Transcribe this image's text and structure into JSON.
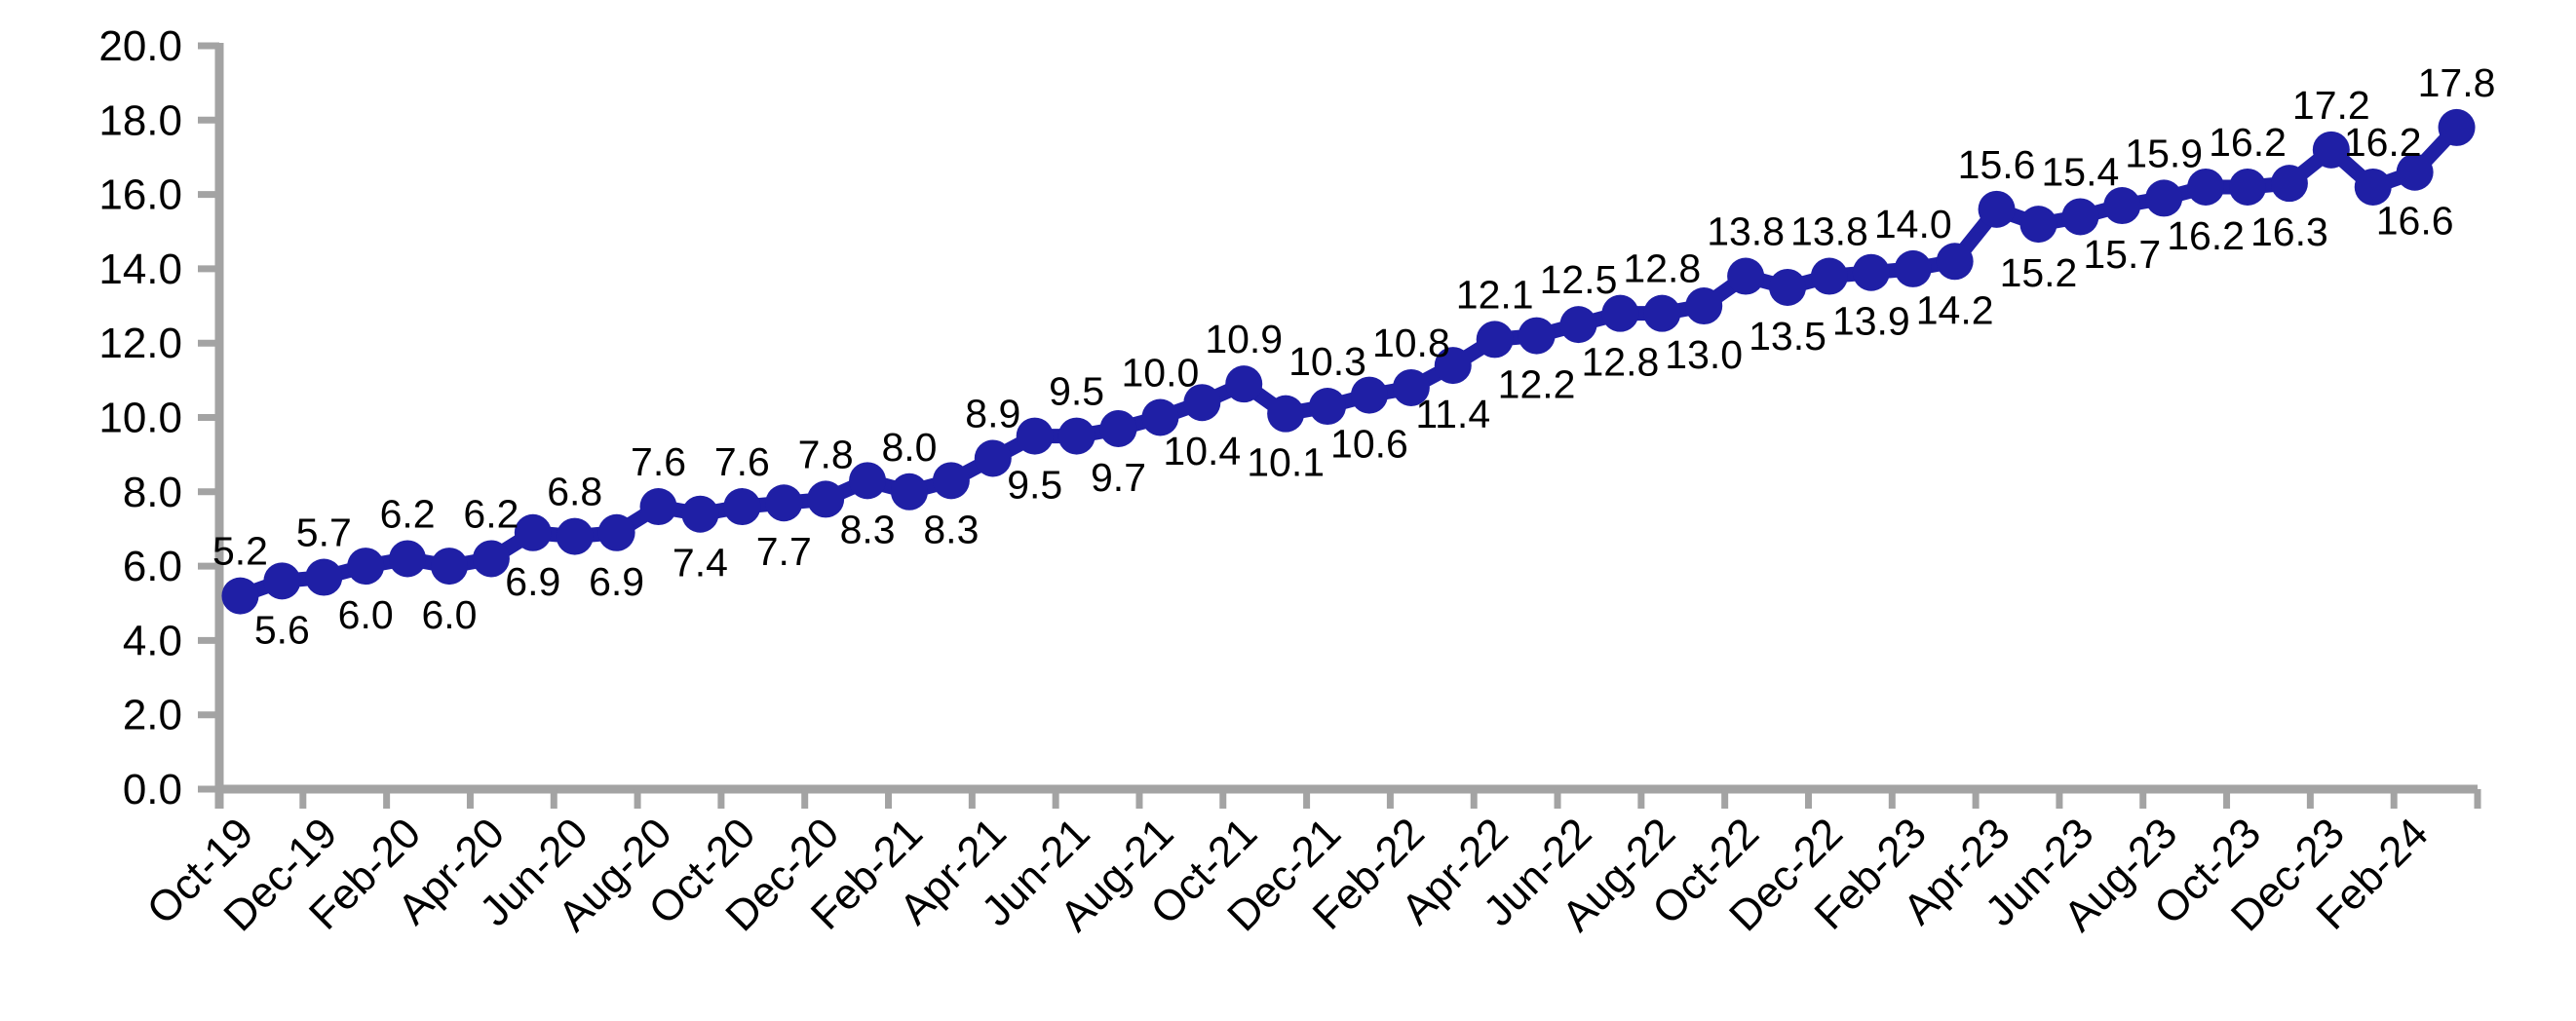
{
  "chart_data": {
    "type": "line",
    "title": "",
    "xlabel": "",
    "ylabel": "",
    "ylim": [
      0,
      20
    ],
    "y_tick_step": 2.0,
    "grid": "off",
    "legend": "none",
    "marker": "circle",
    "series_color": "#1f1fa5",
    "axis_color": "#a3a3a3",
    "label_color": "#000000",
    "x": [
      "Oct-19",
      "Nov-19",
      "Dec-19",
      "Jan-20",
      "Feb-20",
      "Mar-20",
      "Apr-20",
      "May-20",
      "Jun-20",
      "Jul-20",
      "Aug-20",
      "Sep-20",
      "Oct-20",
      "Nov-20",
      "Dec-20",
      "Jan-21",
      "Feb-21",
      "Mar-21",
      "Apr-21",
      "May-21",
      "Jun-21",
      "Jul-21",
      "Aug-21",
      "Sep-21",
      "Oct-21",
      "Nov-21",
      "Dec-21",
      "Jan-22",
      "Feb-22",
      "Mar-22",
      "Apr-22",
      "May-22",
      "Jun-22",
      "Jul-22",
      "Aug-22",
      "Sep-22",
      "Oct-22",
      "Nov-22",
      "Dec-22",
      "Jan-23",
      "Feb-23",
      "Mar-23",
      "Apr-23",
      "May-23",
      "Jun-23",
      "Jul-23",
      "Aug-23",
      "Sep-23",
      "Oct-23",
      "Nov-23",
      "Dec-23",
      "Jan-24",
      "Feb-24",
      "Mar-24"
    ],
    "values": [
      5.2,
      5.6,
      5.7,
      6.0,
      6.2,
      6.0,
      6.2,
      6.9,
      6.8,
      6.9,
      7.6,
      7.4,
      7.6,
      7.7,
      7.8,
      8.3,
      8.0,
      8.3,
      8.9,
      9.5,
      9.5,
      9.7,
      10.0,
      10.4,
      10.9,
      10.1,
      10.3,
      10.6,
      10.8,
      11.4,
      12.1,
      12.2,
      12.5,
      12.8,
      12.8,
      13.0,
      13.8,
      13.5,
      13.8,
      13.9,
      14.0,
      14.2,
      15.6,
      15.2,
      15.4,
      15.7,
      15.9,
      16.2,
      16.2,
      16.3,
      17.2,
      16.2,
      16.6,
      17.8
    ],
    "data_labels": [
      "5.2",
      "5.6",
      "5.7",
      "6.0",
      "6.2",
      "6.0",
      "6.2",
      "6.9",
      "6.8",
      "6.9",
      "7.6",
      "7.4",
      "7.6",
      "7.7",
      "7.8",
      "8.3",
      "8.0",
      "8.3",
      "8.9",
      "9.5",
      "9.5",
      "9.7",
      "10.0",
      "10.4",
      "10.9",
      "10.1",
      "10.3",
      "10.6",
      "10.8",
      "11.4",
      "12.1",
      "12.2",
      "12.5",
      "12.8",
      "12.8",
      "13.0",
      "13.8",
      "13.5",
      "13.8",
      "13.9",
      "14.0",
      "14.2",
      "15.6",
      "15.2",
      "15.4",
      "15.7",
      "15.9",
      "16.2",
      "16.2",
      "16.3",
      "17.2",
      "16.2",
      "16.6",
      "17.8"
    ],
    "label_positions": [
      "above",
      "below",
      "above",
      "below",
      "above",
      "below",
      "above",
      "below",
      "above",
      "below",
      "above",
      "below",
      "above",
      "below",
      "above",
      "below",
      "above",
      "below",
      "above",
      "below",
      "above",
      "below",
      "above",
      "below",
      "above",
      "below",
      "above",
      "below",
      "above",
      "below",
      "above",
      "below",
      "above",
      "below",
      "above",
      "below",
      "above",
      "below",
      "above",
      "below",
      "above",
      "below",
      "above",
      "below",
      "above",
      "below",
      "above",
      "below",
      "above",
      "below",
      "above",
      "above",
      "below",
      "above"
    ],
    "x_tick_labels": [
      "Oct-19",
      "Dec-19",
      "Feb-20",
      "Apr-20",
      "Jun-20",
      "Aug-20",
      "Oct-20",
      "Dec-20",
      "Feb-21",
      "Apr-21",
      "Jun-21",
      "Aug-21",
      "Oct-21",
      "Dec-21",
      "Feb-22",
      "Apr-22",
      "Jun-22",
      "Aug-22",
      "Oct-22",
      "Dec-22",
      "Feb-23",
      "Apr-23",
      "Jun-23",
      "Aug-23",
      "Oct-23",
      "Dec-23",
      "Feb-24"
    ],
    "y_tick_labels": [
      "0.0",
      "2.0",
      "4.0",
      "6.0",
      "8.0",
      "10.0",
      "12.0",
      "14.0",
      "16.0",
      "18.0",
      "20.0"
    ]
  }
}
